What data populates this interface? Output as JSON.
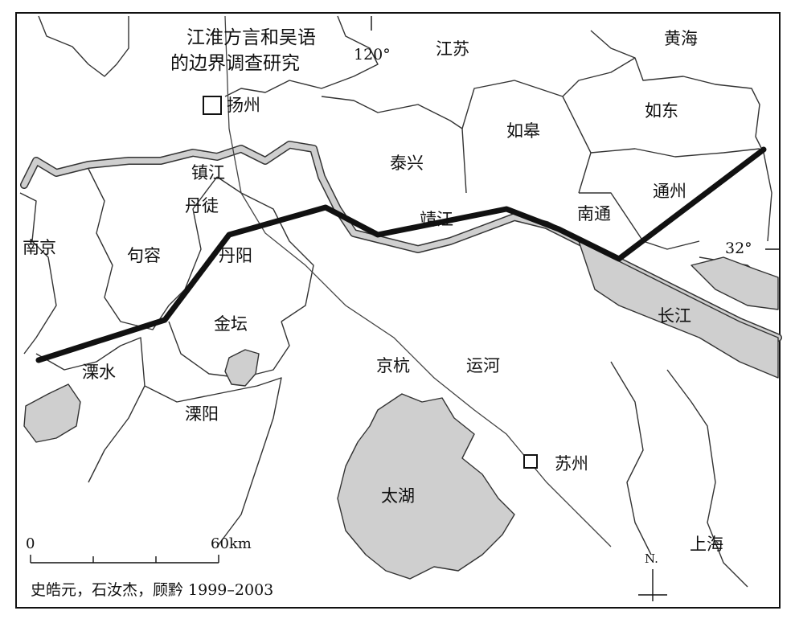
{
  "title_line1": "江淮方言和吴语",
  "title_line2": "的边界调查研究",
  "coords": {
    "longitude": "120°",
    "latitude": "32°"
  },
  "places": {
    "jiangsu": "江苏",
    "huanghai": "黄海",
    "yangzhou": "扬州",
    "rudong": "如东",
    "rugao": "如皋",
    "taixing": "泰兴",
    "zhenjiang": "镇江",
    "danyang_tu": "丹徒",
    "tongzhou": "通州",
    "jingjiang": "靖江",
    "nantong": "南通",
    "nanjing": "南京",
    "jurong": "句容",
    "danyang": "丹阳",
    "changjiang": "长江",
    "jintan": "金坛",
    "lishui": "溧水",
    "jinghang": "京杭",
    "yunhe": "运河",
    "liyang": "溧阳",
    "suzhou": "苏州",
    "taihu": "太湖",
    "shanghai": "上海"
  },
  "scale": {
    "start": "0",
    "end": "60km"
  },
  "north_label": "N.",
  "credit": "史皓元，石汝杰，顾黔   1999–2003",
  "colors": {
    "water": "#cfcfcf",
    "line": "#111111",
    "boundary": "#333333"
  }
}
